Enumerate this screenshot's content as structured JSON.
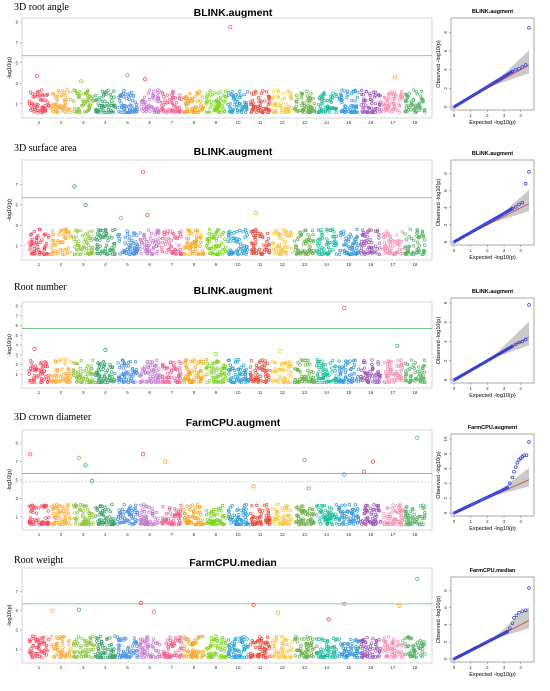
{
  "chart_data": [
    {
      "type": "scatter",
      "trait": "3D root angle",
      "manhattan": {
        "title": "BLINK.augment",
        "ylabel": "-log10(p)",
        "ylim": [
          0,
          9
        ],
        "yticks": [
          1,
          3,
          5,
          7,
          9
        ],
        "threshold": 5.7,
        "chromosomes": [
          "1",
          "2",
          "3",
          "4",
          "5",
          "6",
          "7",
          "8",
          "9",
          "10",
          "11",
          "12",
          "13",
          "14",
          "15",
          "16",
          "17",
          "18"
        ],
        "colors": [
          "#f8485e",
          "#fcb040",
          "#8dc63f",
          "#3ca36a",
          "#4a90e2",
          "#c779d0",
          "#f06292",
          "#f5a623",
          "#7ed321",
          "#2aa1d3",
          "#e94b3c",
          "#f7c948",
          "#6ab04c",
          "#1abc9c",
          "#3498db",
          "#9b59b6",
          "#f78fb3",
          "#58b368"
        ],
        "background_level": 1.7,
        "signals": [
          {
            "chr": "10",
            "pos": 0.15,
            "y": 8.5,
            "color": "#f06292"
          },
          {
            "chr": "5",
            "pos": 0.5,
            "y": 3.8,
            "color": "#c779d0"
          },
          {
            "chr": "17",
            "pos": 0.6,
            "y": 3.6,
            "color": "#f5a623"
          },
          {
            "chr": "1",
            "pos": 0.4,
            "y": 3.7,
            "color": "#f8485e"
          },
          {
            "chr": "6",
            "pos": 0.3,
            "y": 3.4,
            "color": "#e94b3c"
          },
          {
            "chr": "3",
            "pos": 0.4,
            "y": 3.2,
            "color": "#8dc63f"
          }
        ]
      },
      "qq": {
        "title": "BLINK.augment",
        "xlabel": "Expected  -log10(p)",
        "ylabel": "Observed  -log10(p)",
        "xticks": [
          0,
          1,
          2,
          3,
          4
        ],
        "yticks": [
          0,
          2,
          4,
          6,
          8
        ],
        "xlim": [
          0,
          4.5
        ],
        "ylim": [
          0,
          9
        ],
        "tail": [
          [
            3.5,
            3.8
          ],
          [
            3.7,
            4.0
          ],
          [
            3.9,
            4.1
          ],
          [
            4.1,
            4.3
          ],
          [
            4.3,
            4.5
          ],
          [
            4.5,
            8.5
          ]
        ]
      }
    },
    {
      "type": "scatter",
      "trait": "3D surface area",
      "manhattan": {
        "title": "BLINK.augment",
        "ylabel": "-log10(p)",
        "ylim": [
          0,
          9
        ],
        "yticks": [
          1,
          3,
          5,
          7
        ],
        "threshold": 5.7,
        "chromosomes": [
          "1",
          "2",
          "3",
          "4",
          "5",
          "6",
          "7",
          "8",
          "9",
          "10",
          "11",
          "12",
          "13",
          "14",
          "15",
          "16",
          "17",
          "18"
        ],
        "colors": [
          "#f8485e",
          "#fcb040",
          "#8dc63f",
          "#3ca36a",
          "#4a90e2",
          "#c779d0",
          "#f06292",
          "#f5a623",
          "#7ed321",
          "#2aa1d3",
          "#e94b3c",
          "#f7c948",
          "#6ab04c",
          "#1abc9c",
          "#3498db",
          "#9b59b6",
          "#f78fb3",
          "#58b368"
        ],
        "background_level": 1.9,
        "signals": [
          {
            "chr": "6",
            "pos": 0.2,
            "y": 8.2,
            "color": "#f8485e"
          },
          {
            "chr": "3",
            "pos": 0.1,
            "y": 6.8,
            "color": "#3ca36a"
          },
          {
            "chr": "3",
            "pos": 0.6,
            "y": 5.0,
            "color": "#3ca36a"
          },
          {
            "chr": "6",
            "pos": 0.4,
            "y": 4.0,
            "color": "#e94b3c"
          },
          {
            "chr": "11",
            "pos": 0.3,
            "y": 4.2,
            "color": "#f5a623"
          },
          {
            "chr": "5",
            "pos": 0.2,
            "y": 3.7,
            "color": "#c779d0"
          }
        ]
      },
      "qq": {
        "title": "BLINK.augment",
        "xlabel": "Expected  -log10(p)",
        "ylabel": "Observed  -log10(p)",
        "xticks": [
          0,
          1,
          2,
          3,
          4
        ],
        "yticks": [
          0,
          2,
          4,
          6,
          8
        ],
        "xlim": [
          0,
          4.5
        ],
        "ylim": [
          0,
          9
        ],
        "tail": [
          [
            3.5,
            3.9
          ],
          [
            3.7,
            4.1
          ],
          [
            3.9,
            4.4
          ],
          [
            4.1,
            4.6
          ],
          [
            4.3,
            6.8
          ],
          [
            4.5,
            8.2
          ]
        ]
      }
    },
    {
      "type": "scatter",
      "trait": "Root number",
      "manhattan": {
        "title": "BLINK.augment",
        "ylabel": "-log10(p)",
        "ylim": [
          0,
          8
        ],
        "yticks": [
          1,
          2,
          3,
          4,
          5,
          6,
          7,
          8
        ],
        "threshold": 5.7,
        "chromosomes": [
          "1",
          "2",
          "3",
          "4",
          "5",
          "6",
          "7",
          "8",
          "9",
          "10",
          "11",
          "12",
          "13",
          "14",
          "15",
          "16",
          "17",
          "18"
        ],
        "colors": [
          "#f8485e",
          "#fcb040",
          "#8dc63f",
          "#3ca36a",
          "#4a90e2",
          "#c779d0",
          "#f06292",
          "#f5a623",
          "#7ed321",
          "#2aa1d3",
          "#e94b3c",
          "#f7c948",
          "#6ab04c",
          "#1abc9c",
          "#3498db",
          "#9b59b6",
          "#f78fb3",
          "#58b368"
        ],
        "background_level": 1.8,
        "signals": [
          {
            "chr": "15",
            "pos": 0.3,
            "y": 7.8,
            "color": "#f06292"
          },
          {
            "chr": "17",
            "pos": 0.7,
            "y": 3.9,
            "color": "#58b368"
          },
          {
            "chr": "1",
            "pos": 0.3,
            "y": 3.6,
            "color": "#f8485e"
          },
          {
            "chr": "4",
            "pos": 0.5,
            "y": 3.5,
            "color": "#3ca36a"
          },
          {
            "chr": "12",
            "pos": 0.4,
            "y": 3.4,
            "color": "#f7c948"
          },
          {
            "chr": "9",
            "pos": 0.5,
            "y": 3.1,
            "color": "#7ed321"
          }
        ]
      },
      "qq": {
        "title": "BLINK.augment",
        "xlabel": "Expected  -log10(p)",
        "ylabel": "Observed  -log10(p)",
        "xticks": [
          0,
          1,
          2,
          3,
          4
        ],
        "yticks": [
          0,
          2,
          4,
          6,
          8
        ],
        "xlim": [
          0,
          4.5
        ],
        "ylim": [
          0,
          8
        ],
        "tail": [
          [
            3.5,
            3.5
          ],
          [
            3.7,
            3.7
          ],
          [
            3.9,
            3.9
          ],
          [
            4.1,
            4.0
          ],
          [
            4.3,
            4.2
          ],
          [
            4.5,
            7.8
          ]
        ]
      }
    },
    {
      "type": "scatter",
      "trait": "3D crown diameter",
      "manhattan": {
        "title": "FarmCPU.augment",
        "ylabel": "-log10(p)",
        "ylim": [
          0,
          10
        ],
        "yticks": [
          1,
          3,
          5,
          7,
          9
        ],
        "threshold": 5.7,
        "threshold2": 4.8,
        "chromosomes": [
          "1",
          "2",
          "3",
          "4",
          "5",
          "6",
          "7",
          "8",
          "9",
          "10",
          "11",
          "12",
          "13",
          "14",
          "15",
          "16",
          "17",
          "18"
        ],
        "colors": [
          "#f8485e",
          "#fcb040",
          "#8dc63f",
          "#3ca36a",
          "#4a90e2",
          "#c779d0",
          "#f06292",
          "#f5a623",
          "#7ed321",
          "#2aa1d3",
          "#e94b3c",
          "#f7c948",
          "#6ab04c",
          "#1abc9c",
          "#3498db",
          "#9b59b6",
          "#f78fb3",
          "#58b368"
        ],
        "background_level": 1.7,
        "signals": [
          {
            "chr": "18",
            "pos": 0.6,
            "y": 9.6,
            "color": "#58b368"
          },
          {
            "chr": "1",
            "pos": 0.1,
            "y": 7.8,
            "color": "#f8485e"
          },
          {
            "chr": "3",
            "pos": 0.3,
            "y": 7.4,
            "color": "#8dc63f"
          },
          {
            "chr": "6",
            "pos": 0.2,
            "y": 7.8,
            "color": "#e94b3c"
          },
          {
            "chr": "7",
            "pos": 0.2,
            "y": 7.0,
            "color": "#f5a623"
          },
          {
            "chr": "3",
            "pos": 0.6,
            "y": 6.6,
            "color": "#3ca36a"
          },
          {
            "chr": "13",
            "pos": 0.5,
            "y": 7.2,
            "color": "#6ab04c"
          },
          {
            "chr": "16",
            "pos": 0.6,
            "y": 7.0,
            "color": "#e94b3c"
          },
          {
            "chr": "16",
            "pos": 0.2,
            "y": 5.9,
            "color": "#f8485e"
          },
          {
            "chr": "15",
            "pos": 0.3,
            "y": 5.6,
            "color": "#4a90e2"
          },
          {
            "chr": "3",
            "pos": 0.9,
            "y": 4.9,
            "color": "#3ca36a"
          },
          {
            "chr": "11",
            "pos": 0.2,
            "y": 4.3,
            "color": "#f5a623"
          },
          {
            "chr": "13",
            "pos": 0.7,
            "y": 4.1,
            "color": "#6ab04c"
          }
        ]
      },
      "qq": {
        "title": "FarmCPU.augment",
        "xlabel": "Expected  -log10(p)",
        "ylabel": "Observed  -log10(p)",
        "xticks": [
          0,
          1,
          2,
          3,
          4
        ],
        "yticks": [
          0,
          2,
          4,
          6,
          8,
          10
        ],
        "xlim": [
          0,
          4.5
        ],
        "ylim": [
          0,
          10
        ],
        "tail": [
          [
            3.2,
            3.4
          ],
          [
            3.35,
            4.0
          ],
          [
            3.5,
            4.8
          ],
          [
            3.6,
            5.6
          ],
          [
            3.7,
            6.2
          ],
          [
            3.8,
            6.8
          ],
          [
            3.9,
            7.2
          ],
          [
            4.0,
            7.4
          ],
          [
            4.1,
            7.6
          ],
          [
            4.2,
            7.8
          ],
          [
            4.35,
            7.8
          ],
          [
            4.5,
            9.6
          ]
        ]
      }
    },
    {
      "type": "scatter",
      "trait": "Root weight",
      "manhattan": {
        "title": "FarmCPU.median",
        "ylabel": "-log10(p)",
        "ylim": [
          0,
          9
        ],
        "yticks": [
          1,
          3,
          5,
          7
        ],
        "threshold": 5.7,
        "chromosomes": [
          "1",
          "2",
          "3",
          "4",
          "5",
          "6",
          "7",
          "8",
          "9",
          "10",
          "11",
          "12",
          "13",
          "14",
          "15",
          "16",
          "17",
          "18"
        ],
        "colors": [
          "#f8485e",
          "#fcb040",
          "#8dc63f",
          "#3ca36a",
          "#4a90e2",
          "#c779d0",
          "#f06292",
          "#f5a623",
          "#7ed321",
          "#2aa1d3",
          "#e94b3c",
          "#f7c948",
          "#6ab04c",
          "#1abc9c",
          "#3498db",
          "#9b59b6",
          "#f78fb3",
          "#58b368"
        ],
        "background_level": 1.7,
        "signals": [
          {
            "chr": "18",
            "pos": 0.6,
            "y": 8.3,
            "color": "#58b368"
          },
          {
            "chr": "6",
            "pos": 0.1,
            "y": 5.8,
            "color": "#e94b3c"
          },
          {
            "chr": "11",
            "pos": 0.2,
            "y": 5.6,
            "color": "#e94b3c"
          },
          {
            "chr": "15",
            "pos": 0.3,
            "y": 5.7,
            "color": "#c779d0"
          },
          {
            "chr": "17",
            "pos": 0.8,
            "y": 5.5,
            "color": "#f5a623"
          },
          {
            "chr": "2",
            "pos": 0.1,
            "y": 5.0,
            "color": "#fcb040"
          },
          {
            "chr": "3",
            "pos": 0.3,
            "y": 5.1,
            "color": "#3ca36a"
          },
          {
            "chr": "6",
            "pos": 0.7,
            "y": 4.9,
            "color": "#f06292"
          },
          {
            "chr": "12",
            "pos": 0.3,
            "y": 4.8,
            "color": "#f5a623"
          },
          {
            "chr": "14",
            "pos": 0.6,
            "y": 4.1,
            "color": "#f8485e"
          }
        ]
      },
      "qq": {
        "title": "FarmCPU.median",
        "xlabel": "Expected  -log10(p)",
        "ylabel": "Observed  -log10(p)",
        "xticks": [
          0,
          1,
          2,
          3,
          4
        ],
        "yticks": [
          0,
          2,
          4,
          6,
          8
        ],
        "xlim": [
          0,
          4.5
        ],
        "ylim": [
          0,
          9
        ],
        "tail": [
          [
            3.2,
            3.2
          ],
          [
            3.35,
            3.6
          ],
          [
            3.5,
            4.2
          ],
          [
            3.6,
            4.8
          ],
          [
            3.75,
            5.1
          ],
          [
            3.9,
            5.4
          ],
          [
            4.1,
            5.6
          ],
          [
            4.3,
            5.7
          ],
          [
            4.5,
            8.3
          ]
        ]
      }
    }
  ]
}
